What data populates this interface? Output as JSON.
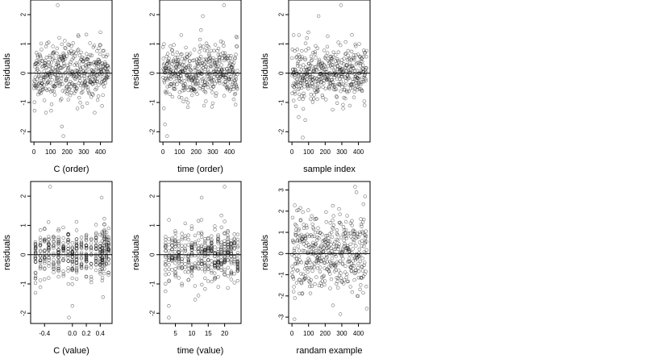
{
  "figure": {
    "background": "#ffffff",
    "point_color": "#000000",
    "zero_line_color": "#000000"
  },
  "chart_data": [
    {
      "type": "scatter",
      "id": "p1",
      "xlabel": "C (order)",
      "ylabel": "residuals",
      "xlim": [
        -20,
        470
      ],
      "ylim": [
        -2.35,
        2.5
      ],
      "xticks": [
        0,
        100,
        200,
        300,
        400
      ],
      "xticklabels": [
        "0",
        "100",
        "200",
        "300",
        "400"
      ],
      "yticks": [
        -2,
        -1,
        0,
        1,
        2
      ],
      "yticklabels": [
        "-2",
        "-1",
        "0",
        "1",
        "2"
      ],
      "gen": {
        "mode": "order",
        "n": 450,
        "seed": 11,
        "sd": 0.45
      },
      "points": [
        [
          143,
          2.32
        ],
        [
          168,
          -1.82
        ],
        [
          177,
          -2.15
        ],
        [
          72,
          -1.35
        ],
        [
          4,
          -1.28
        ],
        [
          315,
          1.32
        ],
        [
          365,
          -1.35
        ],
        [
          400,
          1.4
        ]
      ],
      "hline": 0
    },
    {
      "type": "scatter",
      "id": "p2",
      "xlabel": "time (order)",
      "ylabel": "residuals",
      "xlim": [
        -20,
        470
      ],
      "ylim": [
        -2.35,
        2.5
      ],
      "xticks": [
        0,
        100,
        200,
        300,
        400
      ],
      "xticklabels": [
        "0",
        "100",
        "200",
        "300",
        "400"
      ],
      "yticks": [
        -2,
        -1,
        0,
        1,
        2
      ],
      "yticklabels": [
        "-2",
        "-1",
        "0",
        "1",
        "2"
      ],
      "gen": {
        "mode": "order",
        "n": 450,
        "seed": 23,
        "sd": 0.45
      },
      "points": [
        [
          367,
          2.32
        ],
        [
          240,
          1.95
        ],
        [
          12,
          -1.75
        ],
        [
          25,
          -2.15
        ],
        [
          5,
          -1.2
        ],
        [
          110,
          1.3
        ],
        [
          440,
          1.25
        ]
      ],
      "hline": 0
    },
    {
      "type": "scatter",
      "id": "p3",
      "xlabel": "sample index",
      "ylabel": "residuals",
      "xlim": [
        -20,
        470
      ],
      "ylim": [
        -2.35,
        2.5
      ],
      "xticks": [
        0,
        100,
        200,
        300,
        400
      ],
      "xticklabels": [
        "0",
        "100",
        "200",
        "300",
        "400"
      ],
      "yticks": [
        -2,
        -1,
        0,
        1,
        2
      ],
      "yticklabels": [
        "-2",
        "-1",
        "0",
        "1",
        "2"
      ],
      "gen": {
        "mode": "order",
        "n": 450,
        "seed": 37,
        "sd": 0.45
      },
      "points": [
        [
          295,
          2.32
        ],
        [
          160,
          1.95
        ],
        [
          40,
          -1.5
        ],
        [
          65,
          -2.2
        ],
        [
          80,
          -1.6
        ],
        [
          90,
          1.2
        ],
        [
          10,
          1.3
        ]
      ],
      "hline": 0
    },
    {
      "type": "scatter",
      "id": "p4",
      "xlabel": "C (value)",
      "ylabel": "residuals",
      "xlim": [
        -0.6,
        0.57
      ],
      "ylim": [
        -2.35,
        2.5
      ],
      "xticks": [
        -0.4,
        0.0,
        0.2,
        0.4
      ],
      "xticklabels": [
        "-0.4",
        "0.0",
        "0.2",
        "0.4"
      ],
      "yticks": [
        -2,
        -1,
        0,
        1,
        2
      ],
      "yticklabels": [
        "-2",
        "-1",
        "0",
        "1",
        "2"
      ],
      "gen": {
        "mode": "discrete",
        "n": 450,
        "seed": 51,
        "sd": 0.42,
        "levels": [
          -0.53,
          -0.46,
          -0.4,
          -0.34,
          -0.27,
          -0.2,
          -0.13,
          -0.06,
          0.0,
          0.06,
          0.13,
          0.2,
          0.27,
          0.34,
          0.4,
          0.43,
          0.46,
          0.49,
          0.52
        ]
      },
      "points": [
        [
          -0.32,
          2.32
        ],
        [
          0.42,
          1.95
        ],
        [
          -0.05,
          -2.15
        ],
        [
          0.0,
          -1.75
        ],
        [
          -0.53,
          -1.3
        ],
        [
          0.44,
          -1.45
        ]
      ],
      "hline": 0
    },
    {
      "type": "scatter",
      "id": "p5",
      "xlabel": "time (value)",
      "ylabel": "residuals",
      "xlim": [
        0.2,
        25.0
      ],
      "ylim": [
        -2.35,
        2.5
      ],
      "xticks": [
        5,
        10,
        15,
        20
      ],
      "xticklabels": [
        "5",
        "10",
        "15",
        "20"
      ],
      "yticks": [
        -2,
        -1,
        0,
        1,
        2
      ],
      "yticklabels": [
        "-2",
        "-1",
        "0",
        "1",
        "2"
      ],
      "gen": {
        "mode": "discrete",
        "n": 450,
        "seed": 67,
        "sd": 0.42,
        "levels": [
          2,
          3,
          4,
          5,
          6,
          7,
          8,
          9,
          10,
          11,
          12,
          13,
          14,
          15,
          16,
          17,
          18,
          19,
          20,
          21,
          22,
          23,
          24
        ]
      },
      "points": [
        [
          20,
          2.32
        ],
        [
          13,
          1.95
        ],
        [
          3,
          -1.75
        ],
        [
          3,
          -2.15
        ],
        [
          12,
          -1.4
        ],
        [
          2,
          -1.25
        ]
      ],
      "hline": 0
    },
    {
      "type": "scatter",
      "id": "p6",
      "xlabel": "randam example",
      "ylabel": "residuals",
      "xlim": [
        -20,
        470
      ],
      "ylim": [
        -3.3,
        3.4
      ],
      "xticks": [
        0,
        100,
        200,
        300,
        400
      ],
      "xticklabels": [
        "0",
        "100",
        "200",
        "300",
        "400"
      ],
      "yticks": [
        -3,
        -2,
        -1,
        0,
        1,
        2,
        3
      ],
      "yticklabels": [
        "-3",
        "-2",
        "-1",
        "0",
        "1",
        "2",
        "3"
      ],
      "gen": {
        "mode": "order",
        "n": 450,
        "seed": 83,
        "sd": 1.0
      },
      "points": [
        [
          380,
          3.15
        ],
        [
          15,
          -3.1
        ],
        [
          440,
          2.7
        ],
        [
          450,
          -2.6
        ]
      ],
      "hline": 0
    }
  ]
}
